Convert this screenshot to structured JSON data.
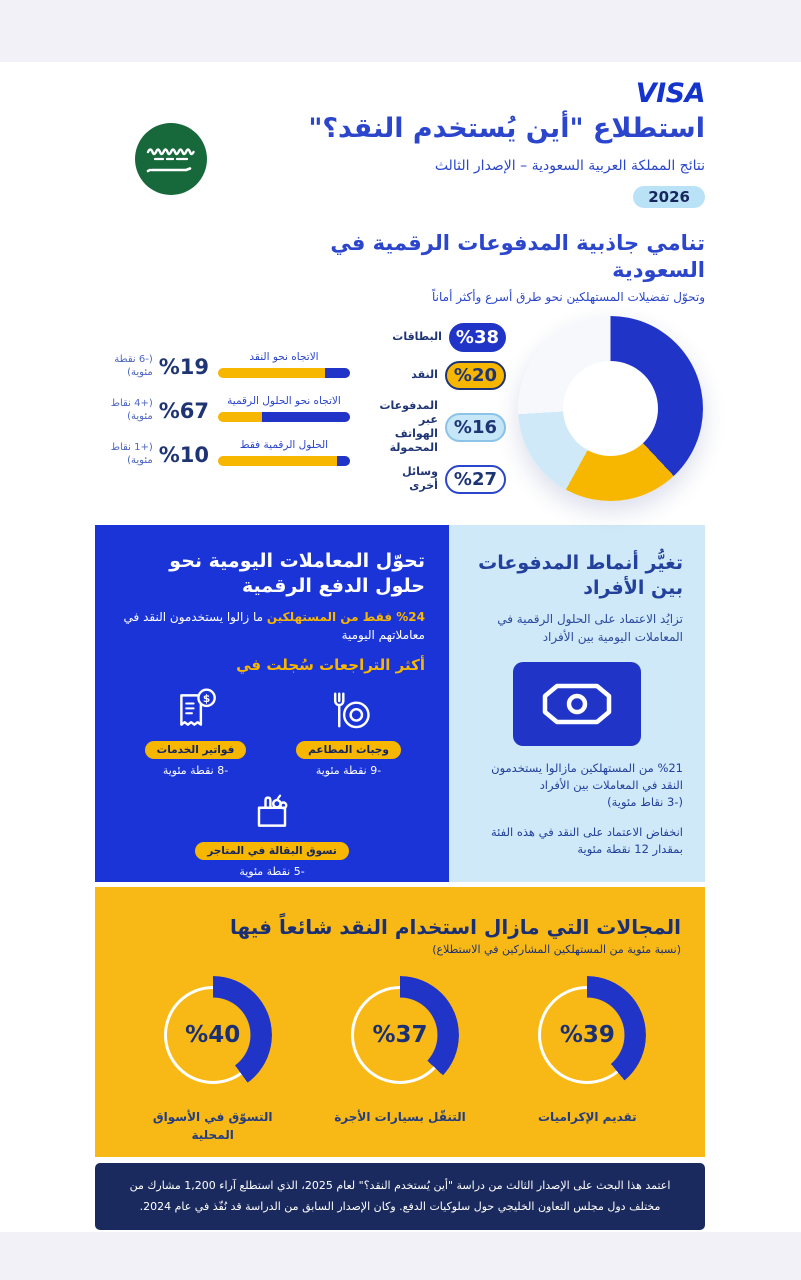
{
  "theme": {
    "royal_blue": "#2b46cc",
    "chart_blue": "#2134c8",
    "box_blue": "#1b34d8",
    "navy": "#16265c",
    "yellow": "#f7b600",
    "light_blue": "#cfe9f8",
    "badge_light_blue": "#c5e7f8",
    "white_segment": "#f6f8fc"
  },
  "brand": {
    "logo": "VISA"
  },
  "header": {
    "title": "استطلاع \"أين يُستخدم النقد؟\"",
    "subtitle": "نتائج المملكة العربية السعودية – الإصدار الثالث",
    "year_badge": "2026"
  },
  "growth_section": {
    "title": "تنامي جاذبية المدفوعات الرقمية في السعودية",
    "subtitle": "وتحوّل تفضيلات المستهلكين نحو طرق أسرع وأكثر أماناً"
  },
  "chart_data": [
    {
      "type": "pie",
      "donut": true,
      "labels": [
        "البطاقات",
        "النقد",
        "المدفوعات عبر الهواتف المحمولة",
        "وسائل أخرى"
      ],
      "values": [
        38,
        20,
        16,
        27
      ],
      "displays": [
        "%38",
        "%20",
        "%16",
        "%27"
      ],
      "colors": [
        "#2134c8",
        "#f7b600",
        "#cfe9f8",
        "#f6f8fc"
      ],
      "legend_position": "left-of-donut"
    },
    {
      "type": "bar",
      "orientation": "horizontal-rtl",
      "categories": [
        "الاتجاه نحو النقد",
        "الاتجاه نحو الحلول الرقمية",
        "الحلول الرقمية فقط"
      ],
      "values": [
        19,
        67,
        10
      ],
      "displays": [
        "%19",
        "%67",
        "%10"
      ],
      "notes": [
        "(-6 نقطة مئوية)",
        "(+4 نقاط مئوية)",
        "(+1 نقاط مئوية)"
      ],
      "xlim": [
        0,
        100
      ],
      "bar_colors": {
        "fill": "#2134c8",
        "track": "#f7b600"
      }
    },
    {
      "type": "donut-gauges",
      "categories": [
        "تقديم الإكراميات",
        "التنقّل بسيارات الأجرة",
        "التسوّق في الأسواق المحلية"
      ],
      "values": [
        39,
        37,
        40
      ],
      "displays": [
        "%39",
        "%37",
        "%40"
      ],
      "arc_color": "#2134c8"
    }
  ],
  "blue_box": {
    "title": "تحوّل المعاملات اليومية نحو حلول الدفع الرقمية",
    "highlight": "%24 فقط من المستهلكين",
    "text": "ما زالوا يستخدمون النقد في معاملاتهم اليومية",
    "subheading": "أكثر التراجعات سُجلت في",
    "items": [
      {
        "icon": "restaurant-meals-icon",
        "label": "وجبات المطاعم",
        "note": "-9 نقطة مئوية"
      },
      {
        "icon": "utility-bills-icon",
        "label": "فواتير الخدمات",
        "note": "-8 نقطة مئوية"
      },
      {
        "icon": "grocery-shopping-icon",
        "label": "تسوق البقالة في المتاجر",
        "note": "-5 نقطة مئوية"
      }
    ],
    "dollar_glyph": "$"
  },
  "p2p_box": {
    "title": "تغيُّر أنماط المدفوعات بين الأفراد",
    "subtitle": "تزايُد الاعتماد على الحلول الرقمية في المعاملات اليومية بين الأفراد",
    "icon": "banknote-icon",
    "para1": "%21 من المستهلكين مازالوا يستخدمون النقد في المعاملات بين الأفراد",
    "para1_note": "(-3 نقاط مئوية)",
    "para2": "انخفاض الاعتماد على النقد في هذه الفئة بمقدار 12 نقطة مئوية"
  },
  "cash_section": {
    "title": "المجالات التي مازال استخدام النقد شائعاً فيها",
    "subtitle": "(نسبة مئوية من المستهلكين المشاركين في الاستطلاع)"
  },
  "footer": {
    "text": "اعتمد هذا البحث على الإصدار الثالث من دراسة \"أين يُستخدم النقد؟\" لعام 2025، الذي استطلع آراء 1,200 مشارك من مختلف دول مجلس التعاون الخليجي حول سلوكيات الدفع. وكان الإصدار السابق من الدراسة قد نُفّذ في عام 2024."
  }
}
